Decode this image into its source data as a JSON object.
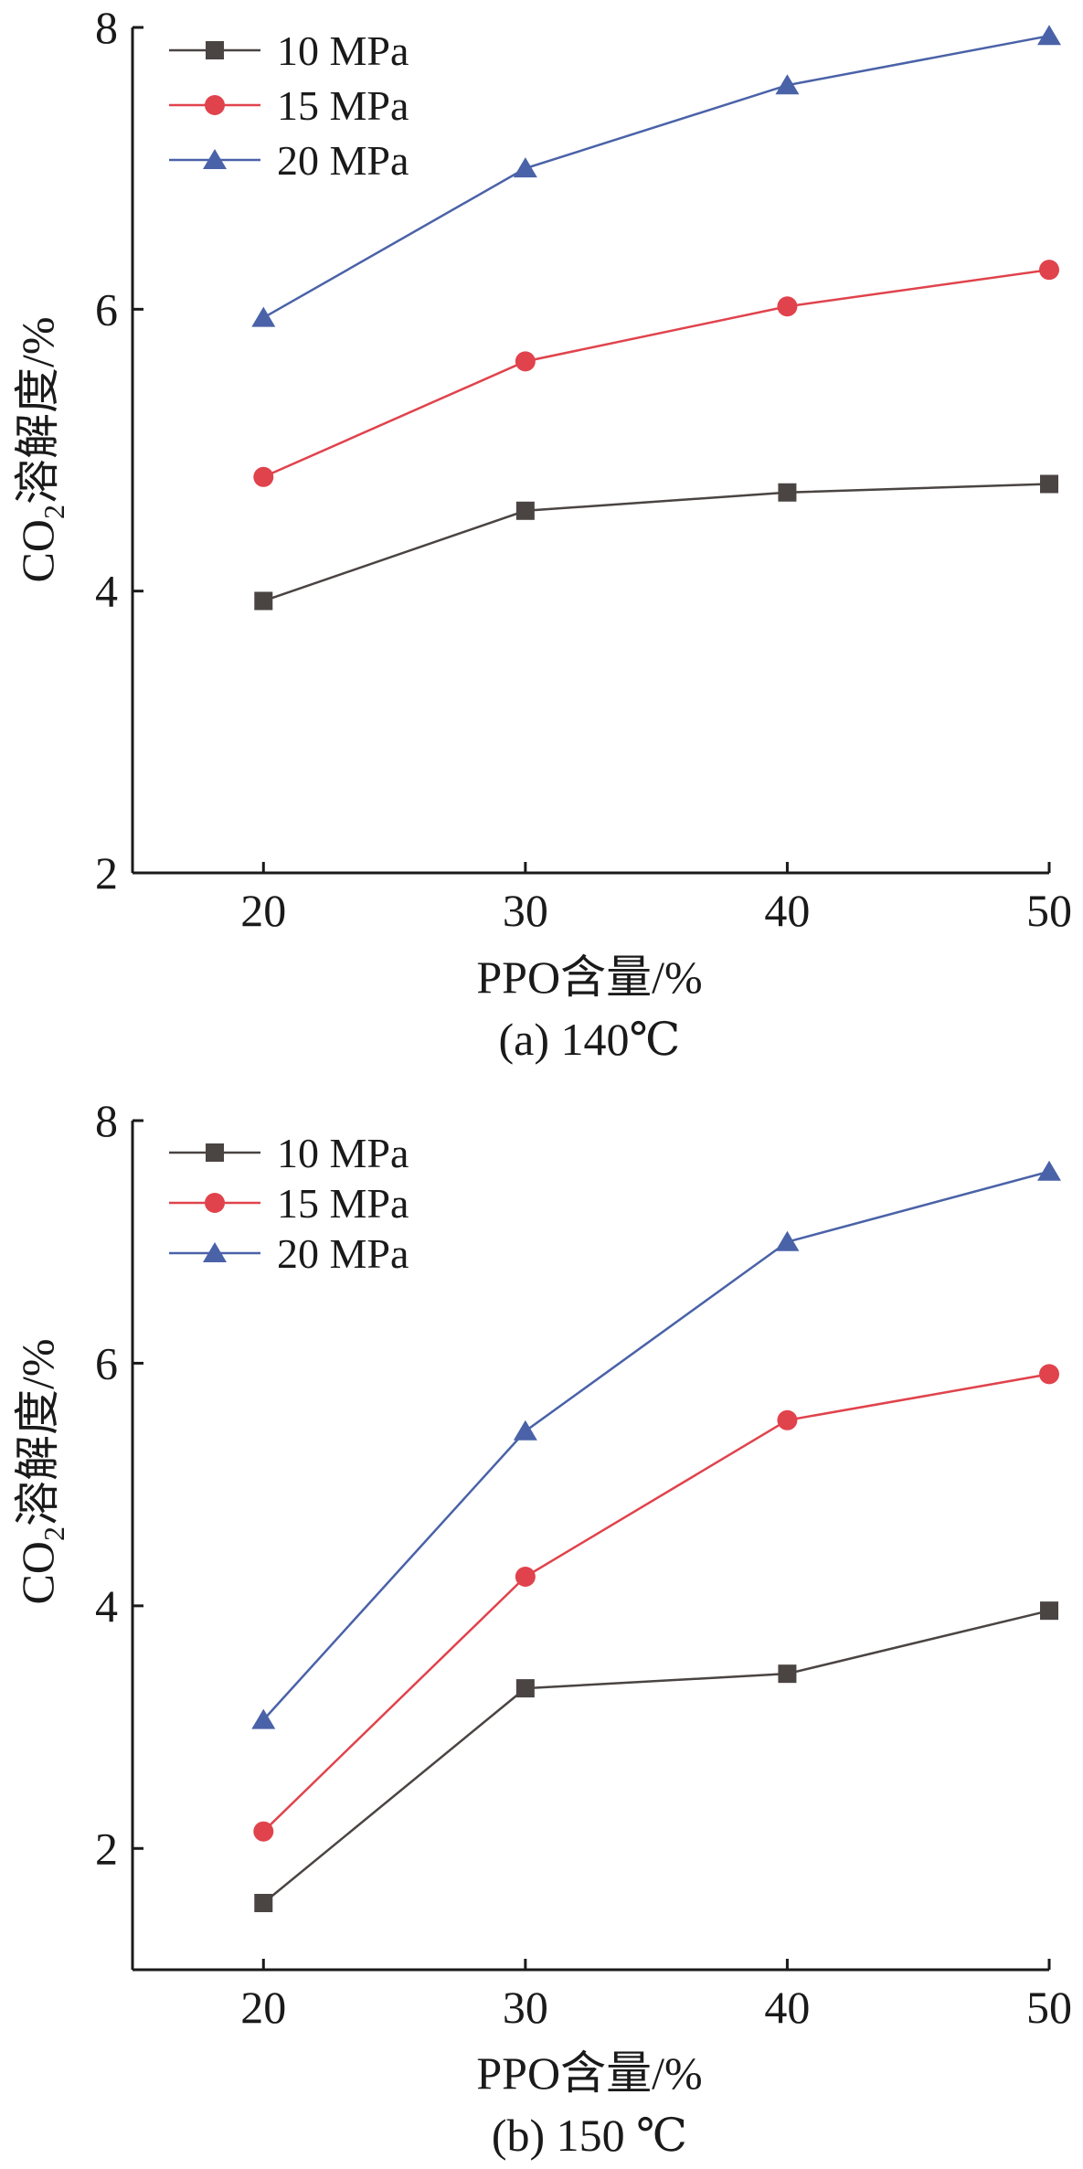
{
  "chart_data": [
    {
      "type": "line",
      "caption": "(a) 140℃",
      "xlabel": "PPO含量/%",
      "ylabel_main": "CO",
      "ylabel_sub": "2",
      "ylabel_rest": "溶解度/%",
      "x": [
        20,
        30,
        40,
        50
      ],
      "xticks": [
        "20",
        "30",
        "40",
        "50"
      ],
      "xlim": [
        15,
        50
      ],
      "ylim": [
        2,
        8
      ],
      "yticks": [
        "2",
        "4",
        "6",
        "8"
      ],
      "grid": false,
      "legend_position": "top-left",
      "series": [
        {
          "name": "10 MPa",
          "color": "#4a4442",
          "marker": "square",
          "values": [
            3.93,
            4.57,
            4.7,
            4.76
          ]
        },
        {
          "name": "15 MPa",
          "color": "#e0434c",
          "marker": "circle",
          "values": [
            4.81,
            5.63,
            6.02,
            6.28
          ]
        },
        {
          "name": "20 MPa",
          "color": "#4a62a8",
          "marker": "triangle",
          "values": [
            5.94,
            7.0,
            7.59,
            7.94
          ]
        }
      ]
    },
    {
      "type": "line",
      "caption": "(b) 150 ℃",
      "xlabel": "PPO含量/%",
      "ylabel_main": "CO",
      "ylabel_sub": "2",
      "ylabel_rest": "溶解度/%",
      "x": [
        20,
        30,
        40,
        50
      ],
      "xticks": [
        "20",
        "30",
        "40",
        "50"
      ],
      "xlim": [
        15,
        50
      ],
      "ylim": [
        1,
        8
      ],
      "yticks": [
        "2",
        "4",
        "6",
        "8"
      ],
      "grid": false,
      "legend_position": "top-left",
      "series": [
        {
          "name": "10 MPa",
          "color": "#4a4442",
          "marker": "square",
          "values": [
            1.55,
            3.32,
            3.44,
            3.96
          ]
        },
        {
          "name": "15 MPa",
          "color": "#e0434c",
          "marker": "circle",
          "values": [
            2.14,
            4.24,
            5.53,
            5.91
          ]
        },
        {
          "name": "20 MPa",
          "color": "#4a62a8",
          "marker": "triangle",
          "values": [
            3.06,
            5.44,
            7.0,
            7.58
          ]
        }
      ]
    }
  ]
}
